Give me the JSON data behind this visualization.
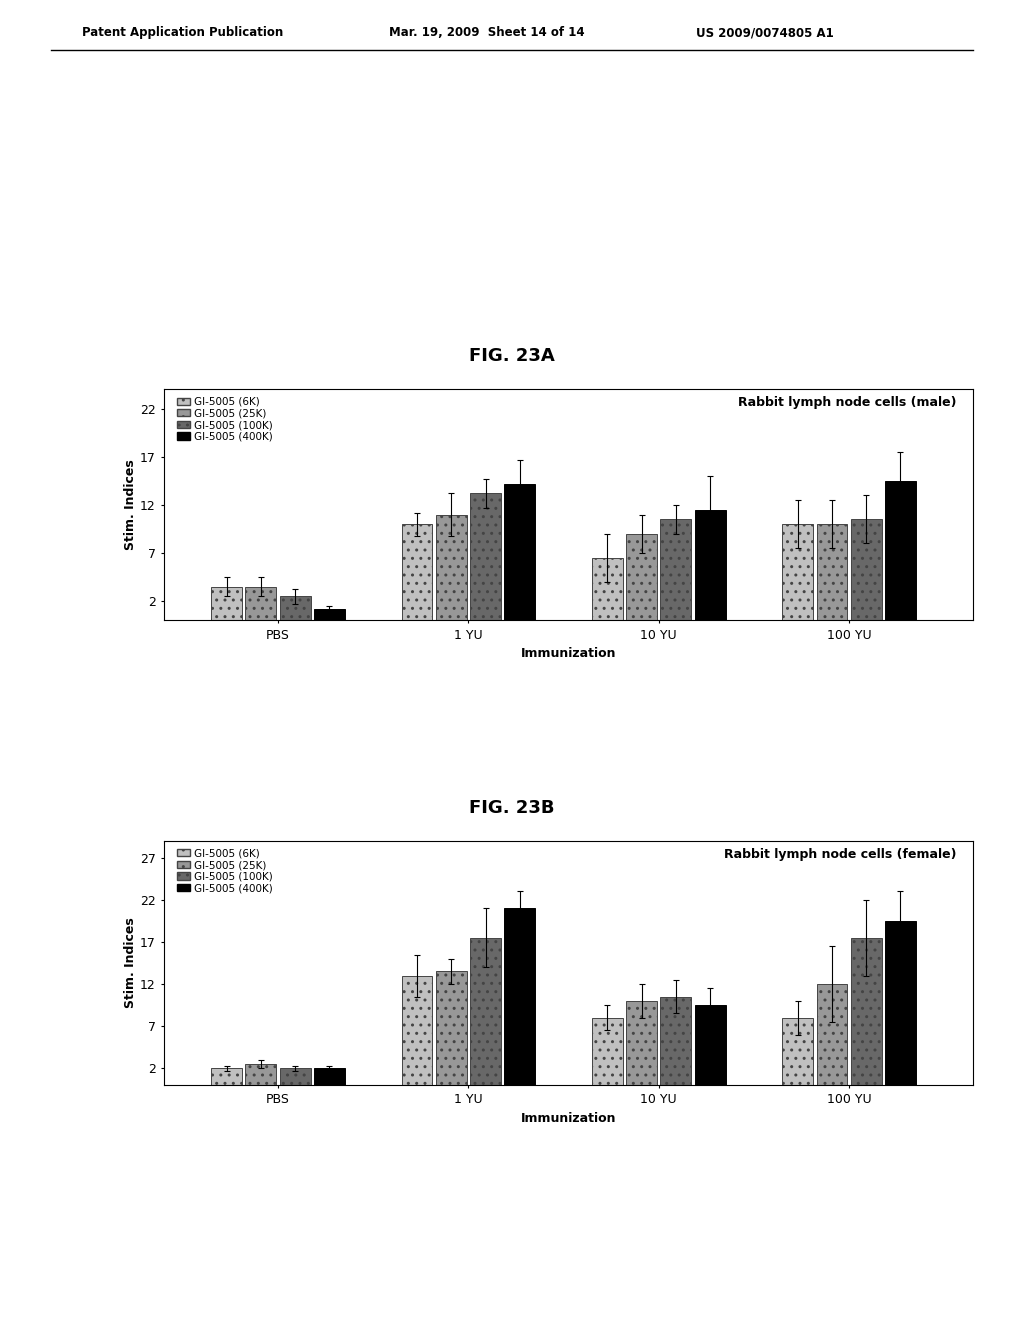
{
  "fig_a_title": "FIG. 23A",
  "fig_b_title": "FIG. 23B",
  "chart_a_title": "Rabbit lymph node cells (male)",
  "chart_b_title": "Rabbit lymph node cells (female)",
  "xlabel": "Immunization",
  "ylabel": "Stim. Indices",
  "groups": [
    "PBS",
    "1 YU",
    "10 YU",
    "100 YU"
  ],
  "legend_labels": [
    "GI-5005 (6K)",
    "GI-5005 (25K)",
    "GI-5005 (100K)",
    "GI-5005 (400K)"
  ],
  "bar_colors": [
    "#c0c0c0",
    "#989898",
    "#686868",
    "#000000"
  ],
  "a_values": [
    [
      3.5,
      3.5,
      2.5,
      1.2
    ],
    [
      10.0,
      11.0,
      13.2,
      14.2
    ],
    [
      6.5,
      9.0,
      10.5,
      11.5
    ],
    [
      10.0,
      10.0,
      10.5,
      14.5
    ]
  ],
  "a_errors": [
    [
      1.0,
      1.0,
      0.8,
      0.3
    ],
    [
      1.2,
      2.2,
      1.5,
      2.5
    ],
    [
      2.5,
      2.0,
      1.5,
      3.5
    ],
    [
      2.5,
      2.5,
      2.5,
      3.0
    ]
  ],
  "b_values": [
    [
      2.0,
      2.5,
      2.0,
      2.0
    ],
    [
      13.0,
      13.5,
      17.5,
      21.0
    ],
    [
      8.0,
      10.0,
      10.5,
      9.5
    ],
    [
      8.0,
      12.0,
      17.5,
      19.5
    ]
  ],
  "b_errors": [
    [
      0.3,
      0.5,
      0.3,
      0.3
    ],
    [
      2.5,
      1.5,
      3.5,
      2.0
    ],
    [
      1.5,
      2.0,
      2.0,
      2.0
    ],
    [
      2.0,
      4.5,
      4.5,
      3.5
    ]
  ],
  "a_yticks": [
    2,
    7,
    12,
    17,
    22
  ],
  "b_yticks": [
    2,
    7,
    12,
    17,
    22,
    27
  ],
  "a_ylim": [
    0,
    24
  ],
  "b_ylim": [
    0,
    29
  ],
  "bg_color": "#ffffff"
}
